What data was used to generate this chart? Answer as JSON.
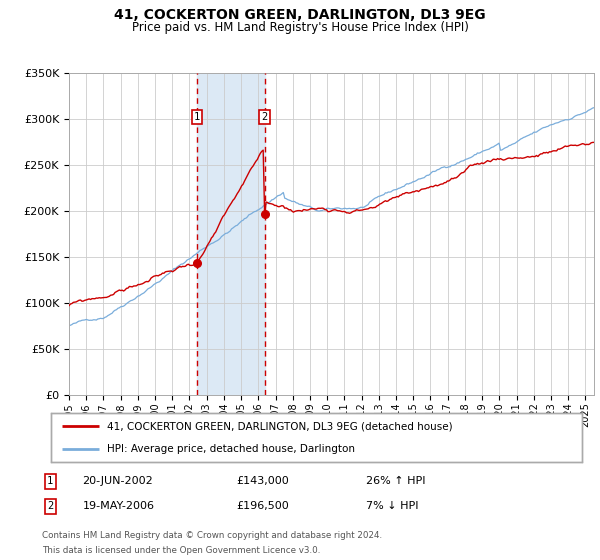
{
  "title": "41, COCKERTON GREEN, DARLINGTON, DL3 9EG",
  "subtitle": "Price paid vs. HM Land Registry's House Price Index (HPI)",
  "legend_line1": "41, COCKERTON GREEN, DARLINGTON, DL3 9EG (detached house)",
  "legend_line2": "HPI: Average price, detached house, Darlington",
  "sale1_date": "20-JUN-2002",
  "sale1_price": 143000,
  "sale1_label": "26% ↑ HPI",
  "sale2_date": "19-MAY-2006",
  "sale2_price": 196500,
  "sale2_label": "7% ↓ HPI",
  "footer": "Contains HM Land Registry data © Crown copyright and database right 2024.\nThis data is licensed under the Open Government Licence v3.0.",
  "red_color": "#cc0000",
  "blue_color": "#7aaddb",
  "shade_color": "#dce9f5",
  "marker_box_color": "#cc0000",
  "ylim": [
    0,
    350000
  ],
  "yticks": [
    0,
    50000,
    100000,
    150000,
    200000,
    250000,
    300000,
    350000
  ],
  "ytick_labels": [
    "£0",
    "£50K",
    "£100K",
    "£150K",
    "£200K",
    "£250K",
    "£300K",
    "£350K"
  ],
  "year_start": 1995,
  "year_end": 2025,
  "sale1_year": 2002.46,
  "sale2_year": 2006.37
}
